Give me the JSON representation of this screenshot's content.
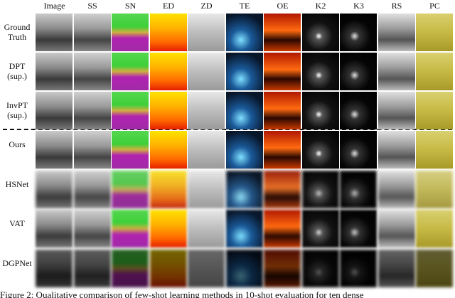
{
  "columns": [
    "Image",
    "SS",
    "SN",
    "ED",
    "ZD",
    "TE",
    "OE",
    "K2",
    "K3",
    "RS",
    "PC"
  ],
  "rows": [
    "Ground Truth",
    "DPT (sup.)",
    "InvPT (sup.)",
    "Ours",
    "HSNet",
    "VAT",
    "DGPNet"
  ],
  "caption": "Figure 2: Qualitative comparison of few-shot learning methods in 10-shot evaluation for ten dense"
}
